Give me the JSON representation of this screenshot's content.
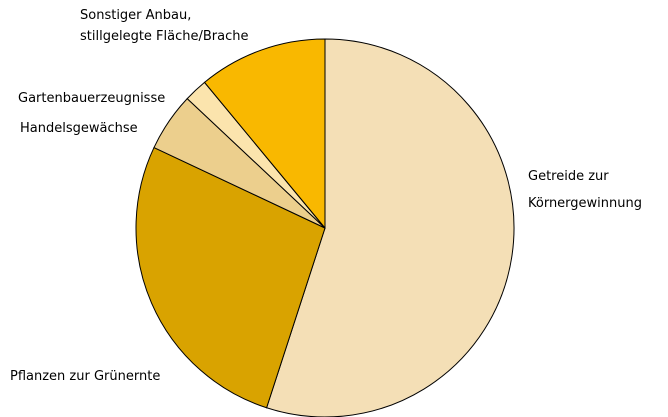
{
  "chart_data": {
    "type": "pie",
    "categories": [
      [
        "Getreide zur",
        "Körnergewinnung"
      ],
      [
        "Pflanzen zur Grünernte"
      ],
      [
        "Handelsgewächse"
      ],
      [
        "Gartenbauerzeugnisse"
      ],
      [
        "Sonstiger Anbau,",
        "stillgelegte Fläche/Brache"
      ]
    ],
    "values": [
      55,
      27,
      5,
      2,
      11
    ],
    "colors": [
      "#f4dfb6",
      "#d9a300",
      "#eccf8d",
      "#fbe4ad",
      "#f9b800"
    ]
  }
}
